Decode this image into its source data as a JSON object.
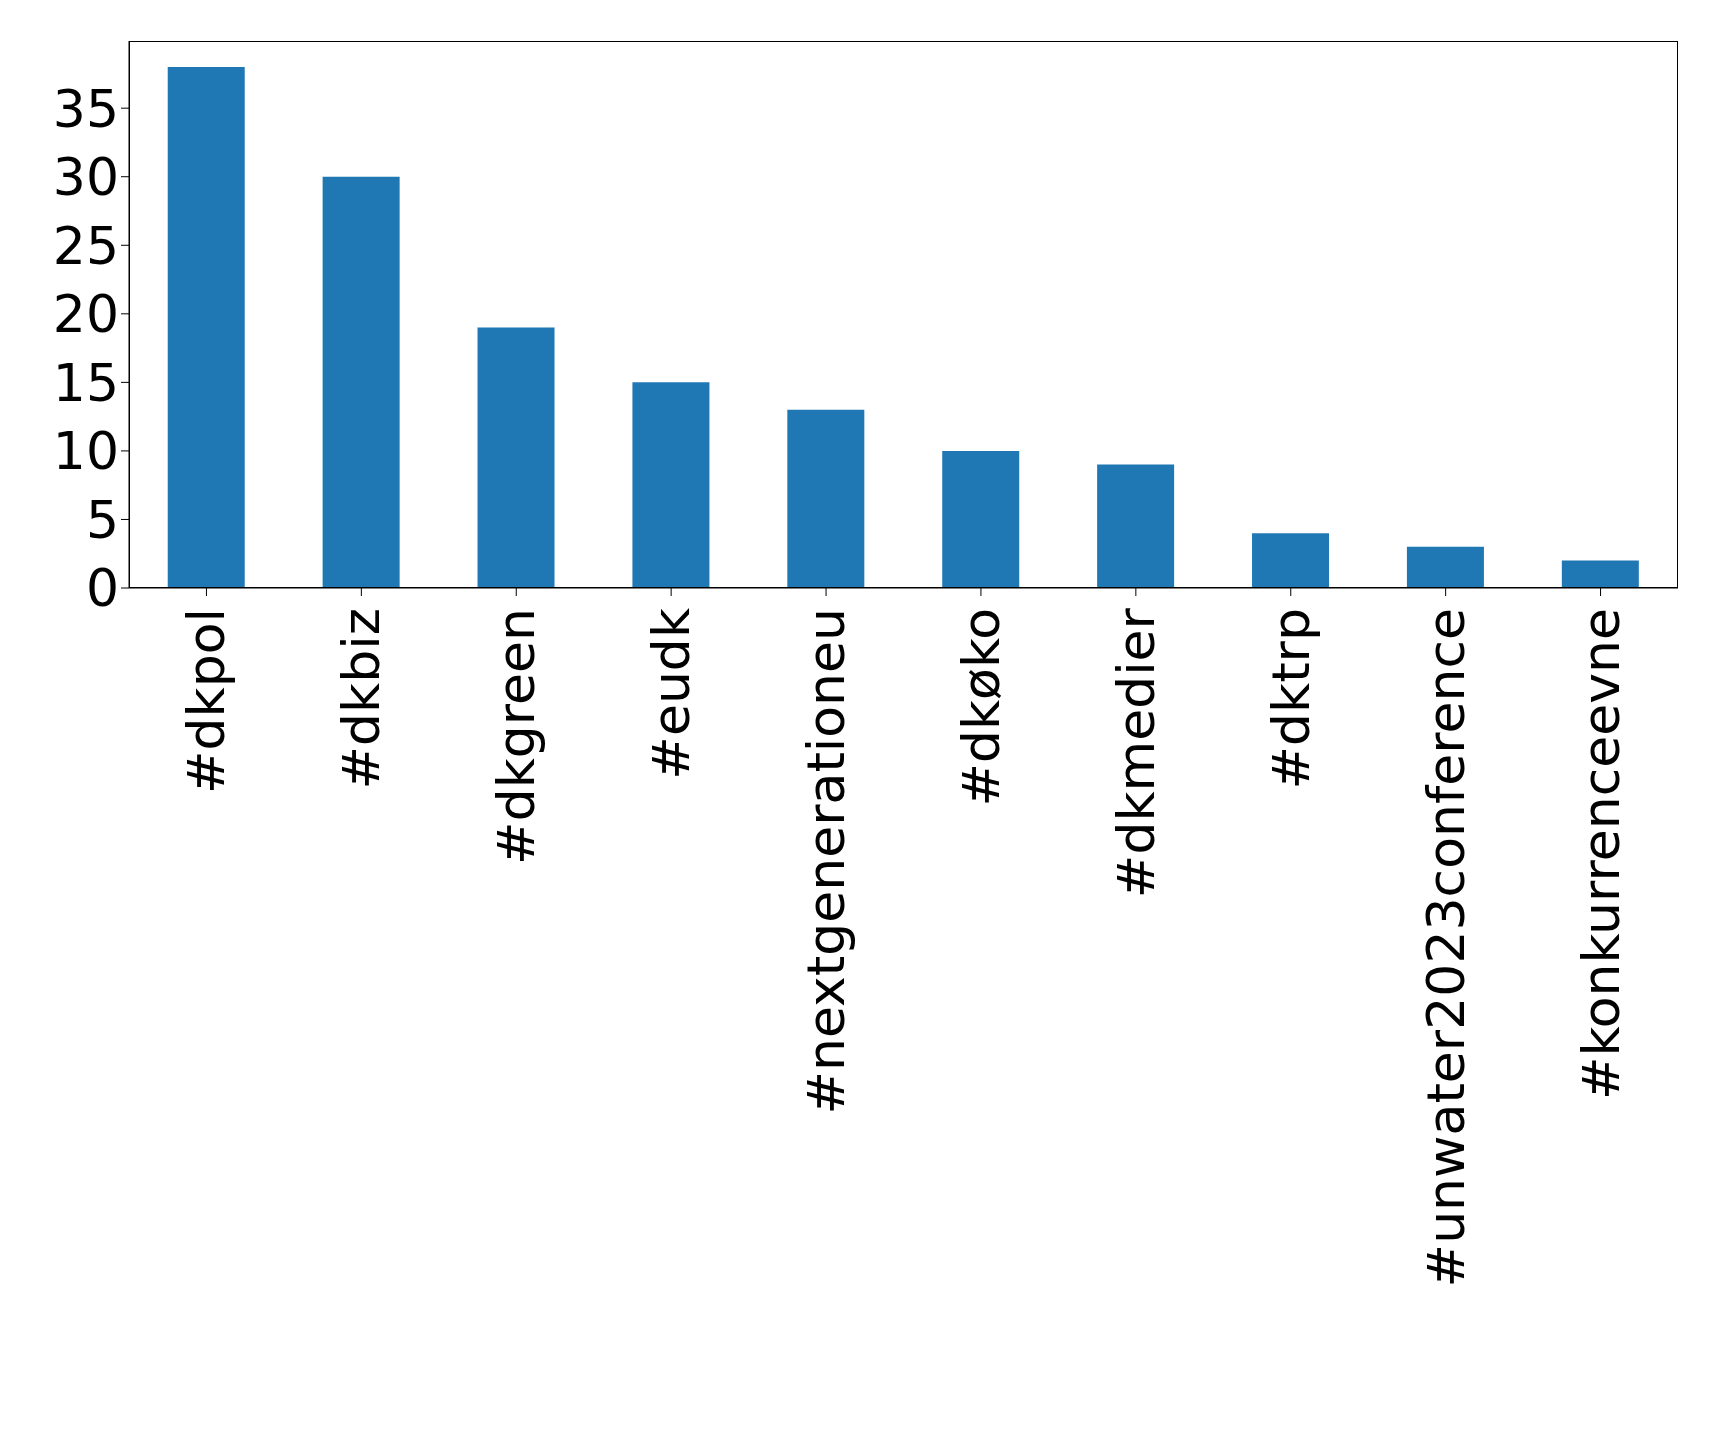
{
  "chart_data": {
    "type": "bar",
    "categories": [
      "#dkpol",
      "#dkbiz",
      "#dkgreen",
      "#eudk",
      "#nextgenerationeu",
      "#dkøko",
      "#dkmedier",
      "#dktrp",
      "#unwater2023conference",
      "#konkurrenceevne"
    ],
    "values": [
      38,
      30,
      19,
      15,
      13,
      10,
      9,
      4,
      3,
      2
    ],
    "color": "#1f77b4",
    "ylim": [
      0,
      39.9
    ],
    "yticks": [
      0,
      5,
      10,
      15,
      20,
      25,
      30,
      35
    ],
    "grid": false,
    "legend": false
  }
}
